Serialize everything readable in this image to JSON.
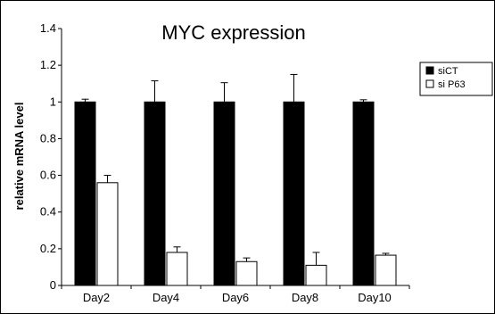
{
  "chart_data": {
    "type": "bar",
    "title": "MYC expression",
    "xlabel": "",
    "ylabel": "relative mRNA level",
    "categories": [
      "Day2",
      "Day4",
      "Day6",
      "Day8",
      "Day10"
    ],
    "ylim": [
      0,
      1.4
    ],
    "yticks": [
      "0",
      "0.2",
      "0.4",
      "0.6",
      "0.8",
      "1",
      "1.2",
      "1.4"
    ],
    "legend_position": "top-right",
    "grid": false,
    "series": [
      {
        "name": "siCT",
        "color": "#000000",
        "values": [
          1.0,
          1.0,
          1.0,
          1.0,
          1.0
        ],
        "errors": [
          0.015,
          0.115,
          0.105,
          0.15,
          0.012
        ]
      },
      {
        "name": "si P63",
        "color": "#ffffff",
        "values": [
          0.56,
          0.18,
          0.13,
          0.11,
          0.165
        ],
        "errors": [
          0.04,
          0.03,
          0.02,
          0.07,
          0.01
        ]
      }
    ]
  }
}
